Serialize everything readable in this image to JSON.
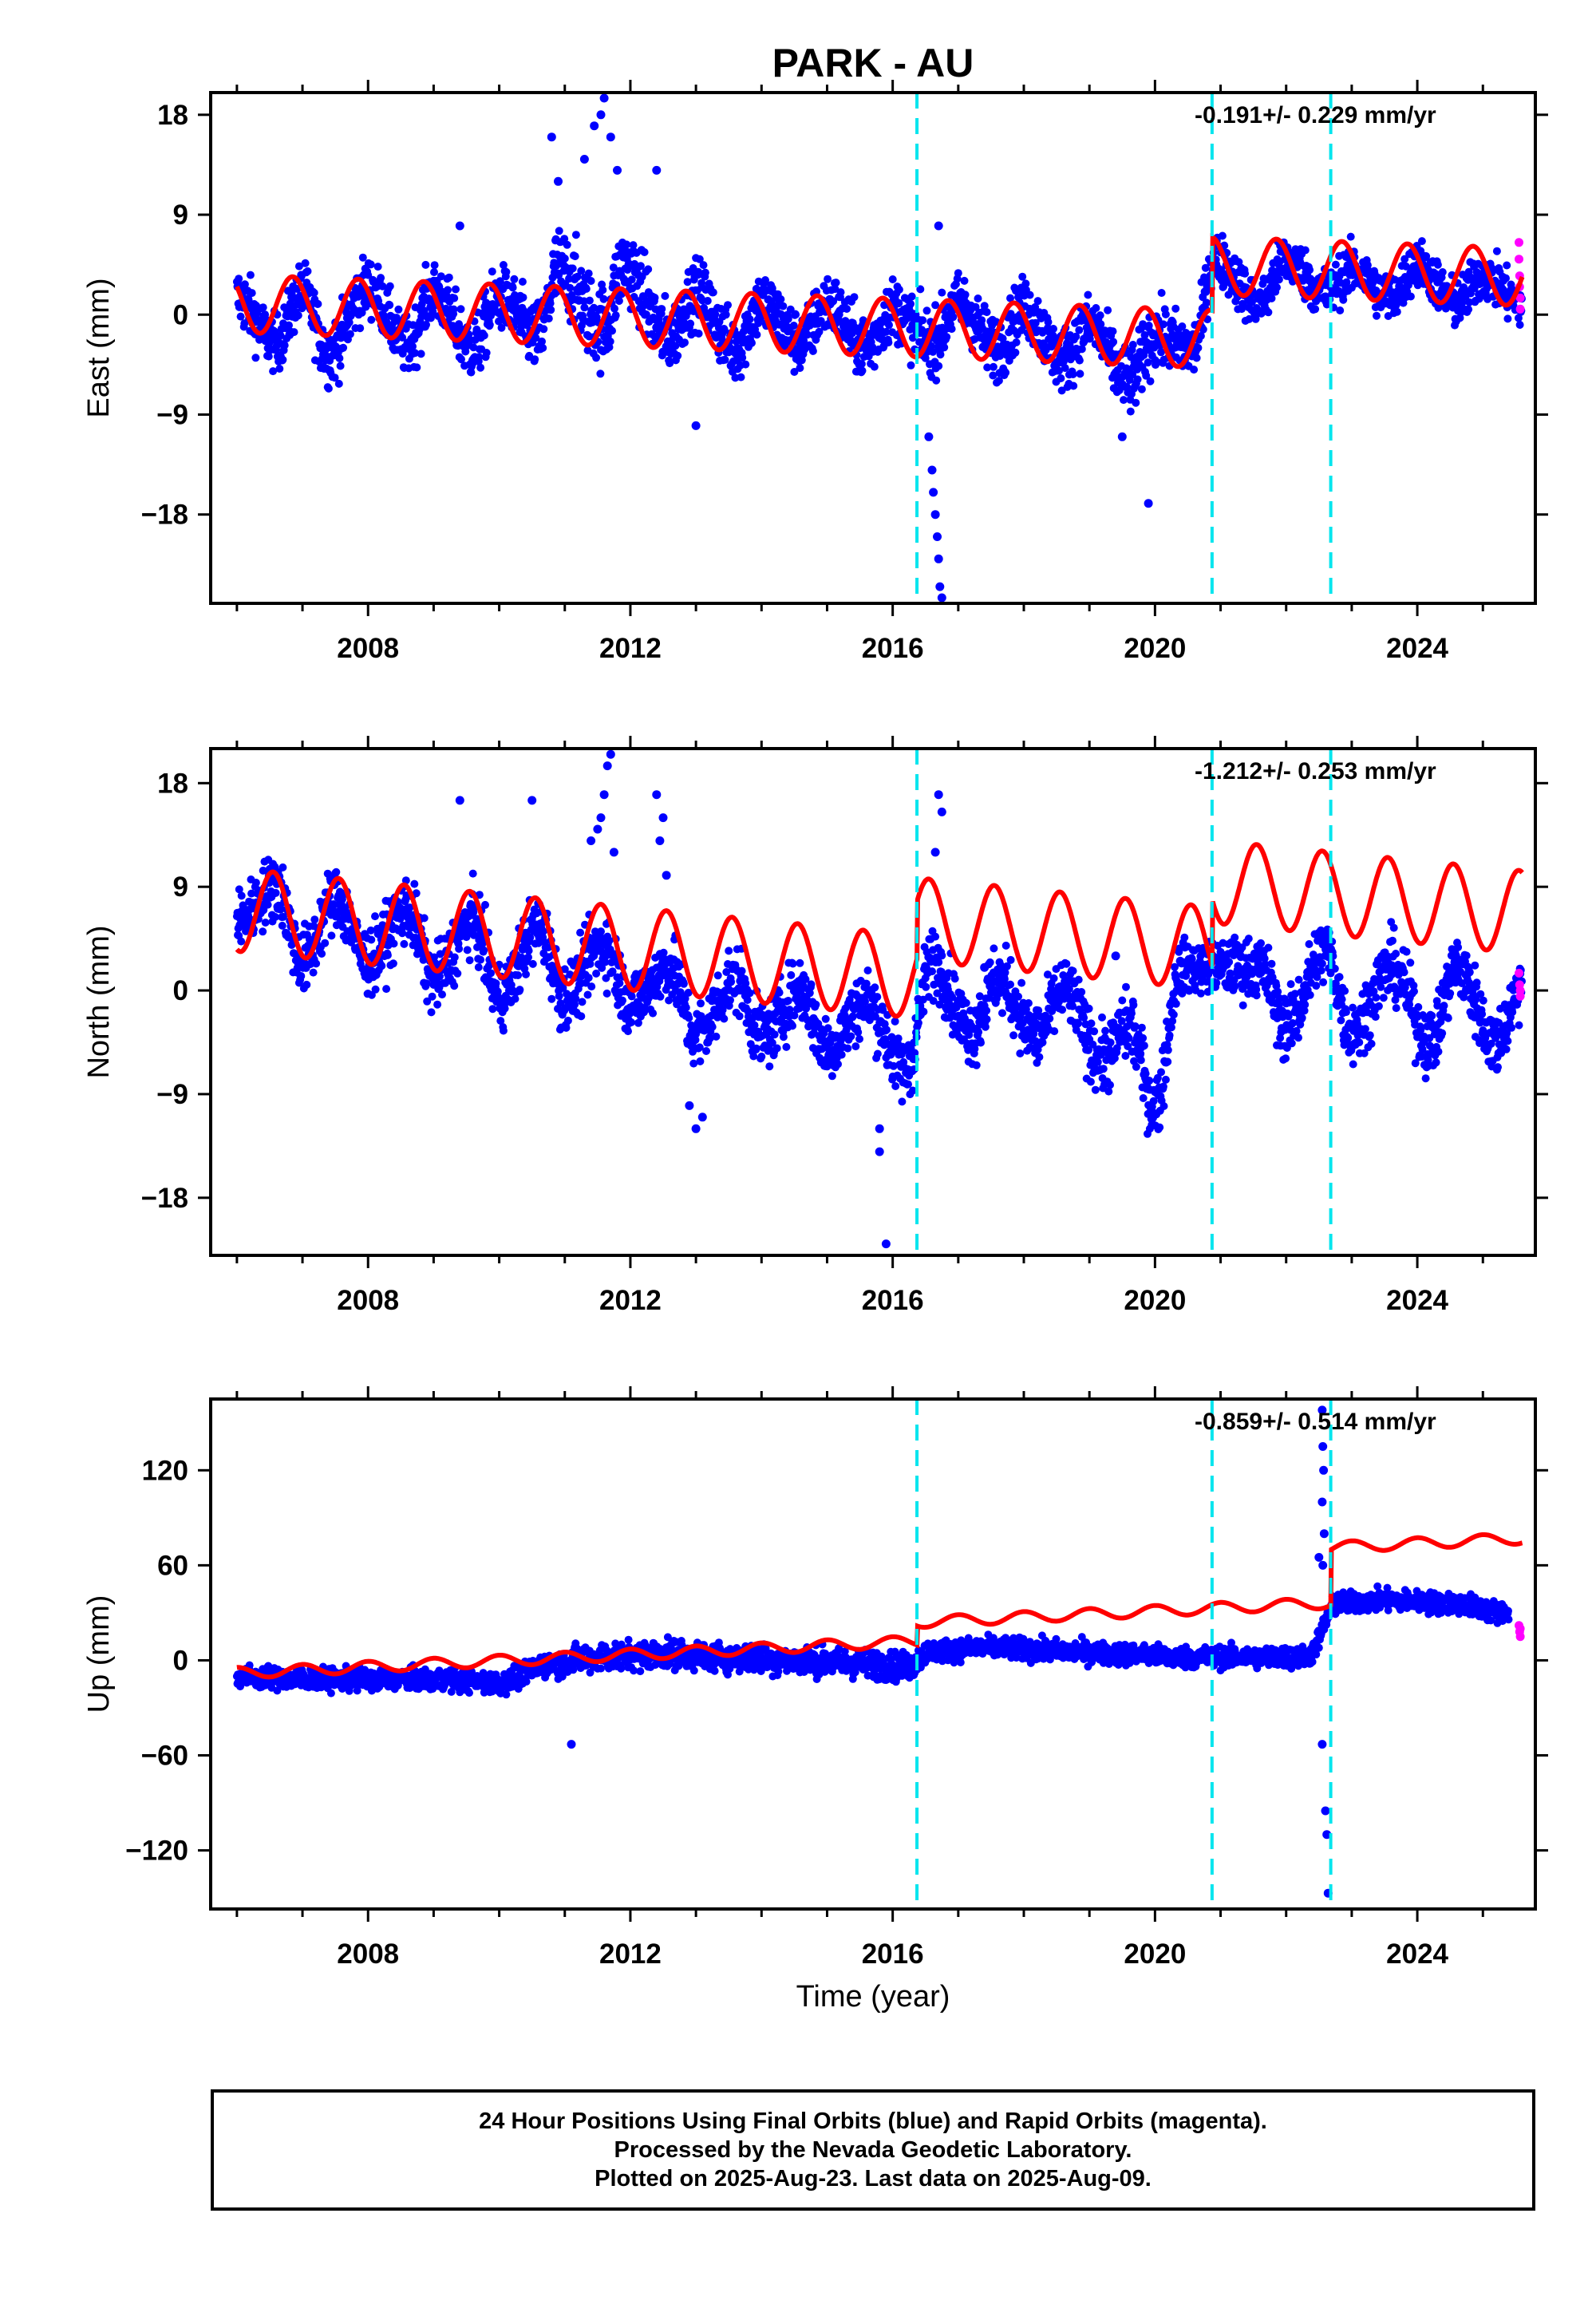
{
  "title": "PARK - AU",
  "xlabel": "Time (year)",
  "footer": {
    "line1": "24 Hour Positions Using Final Orbits (blue) and Rapid Orbits (magenta).",
    "line2": "Processed by the Nevada Geodetic Laboratory.",
    "line3": "Plotted on 2025-Aug-23. Last data on 2025-Aug-09."
  },
  "colors": {
    "final": "#0000ff",
    "rapid": "#ff00ff",
    "model": "#ff0000",
    "offset": "#00e5ee"
  },
  "chart_data": [
    {
      "type": "scatter",
      "component": "East",
      "ylabel": "East (mm)",
      "rate_label": "-0.191+/- 0.229 mm/yr",
      "xlim": [
        2005.6,
        2025.8
      ],
      "ylim": [
        -26,
        20
      ],
      "yticks": [
        18,
        9,
        0,
        -9,
        -18
      ],
      "ytick_labels": [
        "18",
        "9",
        "0",
        "−9",
        "−18"
      ],
      "xticks": [
        2008,
        2012,
        2016,
        2020,
        2024
      ],
      "xtick_labels": [
        "2008",
        "2012",
        "2016",
        "2020",
        "2024"
      ],
      "offset_lines": [
        2016.37,
        2020.87,
        2022.68
      ],
      "rapid_points": [
        [
          2025.55,
          6.5
        ],
        [
          2025.55,
          5.0
        ],
        [
          2025.56,
          3.5
        ],
        [
          2025.56,
          2.5
        ],
        [
          2025.57,
          1.5
        ],
        [
          2025.57,
          0.5
        ]
      ],
      "final_series": [
        [
          2006.0,
          1.5,
          2.6,
          1.0
        ],
        [
          2006.6,
          -2.5,
          2.2,
          0.0
        ],
        [
          2007.0,
          2.0,
          2.4,
          1.0
        ],
        [
          2007.4,
          -3.5,
          2.6,
          0.0
        ],
        [
          2008.0,
          2.5,
          2.4,
          1.0
        ],
        [
          2008.6,
          -2.8,
          2.3,
          0.0
        ],
        [
          2009.0,
          2.0,
          2.5,
          1.0
        ],
        [
          2009.6,
          -3.0,
          2.6,
          0.0
        ],
        [
          2010.0,
          1.5,
          2.6,
          1.0
        ],
        [
          2010.6,
          -2.0,
          2.8,
          0.0
        ],
        [
          2010.9,
          4.0,
          3.5,
          1.0
        ],
        [
          2011.6,
          -1.0,
          3.4,
          0.0
        ],
        [
          2011.9,
          4.5,
          3.2,
          1.0
        ],
        [
          2012.6,
          -2.0,
          2.8,
          0.0
        ],
        [
          2013.0,
          2.0,
          2.6,
          1.0
        ],
        [
          2013.6,
          -3.0,
          2.8,
          0.0
        ],
        [
          2014.0,
          1.0,
          2.6,
          1.0
        ],
        [
          2014.6,
          -2.5,
          2.6,
          0.0
        ],
        [
          2015.0,
          1.0,
          2.5,
          1.0
        ],
        [
          2015.6,
          -3.0,
          2.6,
          0.0
        ],
        [
          2016.0,
          0.5,
          2.5,
          1.0
        ],
        [
          2016.6,
          -2.5,
          2.6,
          0.0
        ],
        [
          2017.0,
          1.0,
          2.4,
          1.0
        ],
        [
          2017.6,
          -3.0,
          2.6,
          0.0
        ],
        [
          2018.0,
          0.5,
          2.5,
          1.0
        ],
        [
          2018.6,
          -4.0,
          2.6,
          0.0
        ],
        [
          2019.0,
          -1.0,
          2.5,
          1.0
        ],
        [
          2019.6,
          -6.0,
          2.8,
          0.0
        ],
        [
          2020.0,
          -2.0,
          2.6,
          1.0
        ],
        [
          2020.6,
          -3.0,
          2.4,
          0.0
        ],
        [
          2020.9,
          5.0,
          2.2,
          1.0
        ],
        [
          2021.6,
          1.0,
          2.0,
          0.0
        ],
        [
          2022.0,
          5.0,
          2.1,
          1.0
        ],
        [
          2022.6,
          2.0,
          2.0,
          0.0
        ],
        [
          2023.0,
          4.0,
          2.0,
          1.0
        ],
        [
          2023.6,
          1.5,
          2.0,
          0.0
        ],
        [
          2024.0,
          4.5,
          2.0,
          1.0
        ],
        [
          2024.6,
          1.0,
          2.0,
          0.0
        ],
        [
          2025.0,
          3.5,
          2.0,
          1.0
        ],
        [
          2025.6,
          1.0,
          2.0,
          0.0
        ]
      ],
      "outliers": [
        [
          2011.3,
          14
        ],
        [
          2011.45,
          17
        ],
        [
          2011.6,
          19.5
        ],
        [
          2011.7,
          16
        ],
        [
          2011.8,
          13
        ],
        [
          2011.55,
          18
        ],
        [
          2010.8,
          16
        ],
        [
          2010.9,
          12
        ],
        [
          2012.4,
          13
        ],
        [
          2009.4,
          8
        ],
        [
          2013.0,
          -10
        ],
        [
          2016.55,
          -11
        ],
        [
          2016.6,
          -14
        ],
        [
          2016.62,
          -16
        ],
        [
          2016.65,
          -18
        ],
        [
          2016.68,
          -20
        ],
        [
          2016.7,
          -22
        ],
        [
          2016.72,
          -24.5
        ],
        [
          2016.75,
          -25.5
        ],
        [
          2016.7,
          8
        ],
        [
          2019.5,
          -11
        ],
        [
          2019.9,
          -17
        ]
      ],
      "model_segments": [
        {
          "x": [
            2006.0,
            2025.6
          ],
          "mean_start": 1.0,
          "mean_end": -3.2,
          "amplitude": 2.6,
          "phase_peak": 0.85,
          "steps": [
            [
              2020.87,
              6.6
            ]
          ]
        }
      ]
    },
    {
      "type": "scatter",
      "component": "North",
      "ylabel": "North (mm)",
      "rate_label": "-1.212+/- 0.253 mm/yr",
      "xlim": [
        2005.6,
        2025.8
      ],
      "ylim": [
        -23,
        21
      ],
      "yticks": [
        18,
        9,
        0,
        -9,
        -18
      ],
      "ytick_labels": [
        "18",
        "9",
        "0",
        "−9",
        "−18"
      ],
      "xticks": [
        2008,
        2012,
        2016,
        2020,
        2024
      ],
      "xtick_labels": [
        "2008",
        "2012",
        "2016",
        "2020",
        "2024"
      ],
      "offset_lines": [
        2016.37,
        2020.87,
        2022.68
      ],
      "rapid_points": [
        [
          2025.55,
          1.5
        ],
        [
          2025.56,
          0.5
        ],
        [
          2025.57,
          -0.5
        ],
        [
          2025.57,
          0.0
        ]
      ],
      "final_series": [
        [
          2006.0,
          6.0,
          2.4,
          1.0
        ],
        [
          2006.6,
          9.0,
          2.6,
          0.0
        ],
        [
          2007.0,
          2.5,
          2.6,
          1.0
        ],
        [
          2007.5,
          8.0,
          2.6,
          0.0
        ],
        [
          2008.0,
          2.5,
          2.6,
          1.0
        ],
        [
          2008.6,
          7.0,
          2.6,
          0.0
        ],
        [
          2009.0,
          1.0,
          2.6,
          1.0
        ],
        [
          2009.6,
          6.0,
          2.6,
          0.0
        ],
        [
          2010.0,
          -0.5,
          2.6,
          1.0
        ],
        [
          2010.6,
          5.5,
          2.6,
          0.0
        ],
        [
          2011.0,
          -0.5,
          2.6,
          1.0
        ],
        [
          2011.6,
          4.0,
          2.8,
          0.0
        ],
        [
          2012.0,
          -1.0,
          2.6,
          1.0
        ],
        [
          2012.6,
          2.0,
          2.6,
          0.0
        ],
        [
          2013.0,
          -4.0,
          2.8,
          1.0
        ],
        [
          2013.6,
          1.0,
          2.6,
          0.0
        ],
        [
          2014.0,
          -4.0,
          2.6,
          1.0
        ],
        [
          2014.6,
          0.0,
          2.6,
          0.0
        ],
        [
          2015.0,
          -5.0,
          2.6,
          1.0
        ],
        [
          2015.6,
          -1.0,
          2.6,
          0.0
        ],
        [
          2016.2,
          -7.0,
          2.6,
          1.0
        ],
        [
          2016.6,
          2.5,
          2.6,
          0.0
        ],
        [
          2017.2,
          -3.5,
          2.6,
          1.0
        ],
        [
          2017.6,
          1.0,
          2.6,
          0.0
        ],
        [
          2018.2,
          -4.0,
          2.6,
          1.0
        ],
        [
          2018.6,
          0.0,
          2.6,
          0.0
        ],
        [
          2019.2,
          -6.0,
          2.6,
          1.0
        ],
        [
          2019.6,
          -3.0,
          2.6,
          0.0
        ],
        [
          2020.0,
          -10.0,
          2.8,
          1.0
        ],
        [
          2020.4,
          2.0,
          2.0,
          0.0
        ],
        [
          2020.9,
          2.0,
          2.0,
          1.0
        ],
        [
          2021.6,
          2.0,
          2.4,
          0.0
        ],
        [
          2022.0,
          -3.0,
          2.6,
          1.0
        ],
        [
          2022.6,
          3.5,
          2.6,
          0.0
        ],
        [
          2023.0,
          -3.5,
          2.6,
          1.0
        ],
        [
          2023.6,
          2.0,
          2.6,
          0.0
        ],
        [
          2024.2,
          -4.5,
          2.6,
          1.0
        ],
        [
          2024.6,
          2.0,
          2.6,
          0.0
        ],
        [
          2025.2,
          -4.5,
          2.6,
          1.0
        ],
        [
          2025.6,
          0.5,
          2.4,
          0.0
        ]
      ],
      "outliers": [
        [
          2009.4,
          16.5
        ],
        [
          2010.5,
          16.5
        ],
        [
          2011.4,
          13
        ],
        [
          2011.5,
          14
        ],
        [
          2011.55,
          15
        ],
        [
          2011.6,
          17
        ],
        [
          2011.65,
          19.5
        ],
        [
          2011.7,
          20.5
        ],
        [
          2011.75,
          12
        ],
        [
          2012.4,
          17
        ],
        [
          2012.5,
          15
        ],
        [
          2012.45,
          13
        ],
        [
          2012.55,
          10
        ],
        [
          2013.0,
          -12
        ],
        [
          2012.9,
          -10
        ],
        [
          2013.1,
          -11
        ],
        [
          2015.8,
          -14
        ],
        [
          2015.9,
          -22
        ],
        [
          2015.8,
          -12
        ],
        [
          2016.7,
          17
        ],
        [
          2016.75,
          15.5
        ],
        [
          2016.65,
          12
        ],
        [
          2017.4,
          2
        ],
        [
          2019.4,
          3
        ]
      ],
      "model_segments": [
        {
          "x": [
            2006.0,
            2025.6
          ],
          "mean_start": 7.0,
          "mean_end": -4.0,
          "amplitude": 3.6,
          "phase_peak": 0.55,
          "steps": [
            [
              2016.37,
              5.0
            ],
            [
              2020.87,
              5.8
            ]
          ]
        }
      ]
    },
    {
      "type": "scatter",
      "component": "Up",
      "ylabel": "Up (mm)",
      "rate_label": "-0.859+/- 0.514 mm/yr",
      "xlim": [
        2005.6,
        2025.8
      ],
      "ylim": [
        -157,
        165
      ],
      "yticks": [
        120,
        60,
        0,
        -60,
        -120
      ],
      "ytick_labels": [
        "120",
        "60",
        "0",
        "−60",
        "−120"
      ],
      "xticks": [
        2008,
        2012,
        2016,
        2020,
        2024
      ],
      "xtick_labels": [
        "2008",
        "2012",
        "2016",
        "2020",
        "2024"
      ],
      "offset_lines": [
        2016.37,
        2020.87,
        2022.68
      ],
      "rapid_points": [
        [
          2025.55,
          22
        ],
        [
          2025.56,
          18
        ],
        [
          2025.57,
          15
        ],
        [
          2025.57,
          20
        ]
      ],
      "final_series": [
        [
          2006.0,
          -10,
          6,
          0.5
        ],
        [
          2007.0,
          -12,
          6,
          0.5
        ],
        [
          2008.0,
          -12,
          6,
          0.5
        ],
        [
          2009.0,
          -12,
          6,
          0.5
        ],
        [
          2010.0,
          -14,
          6,
          0.5
        ],
        [
          2010.8,
          -2,
          7,
          0.5
        ],
        [
          2011.5,
          2,
          8,
          0.5
        ],
        [
          2012.5,
          4,
          8,
          0.5
        ],
        [
          2013.5,
          2,
          8,
          0.5
        ],
        [
          2014.5,
          0,
          8,
          0.5
        ],
        [
          2015.5,
          -2,
          8,
          0.5
        ],
        [
          2016.2,
          -4,
          8,
          0.5
        ],
        [
          2016.6,
          6,
          6,
          0.5
        ],
        [
          2017.5,
          8,
          6,
          0.5
        ],
        [
          2018.5,
          6,
          6,
          0.5
        ],
        [
          2019.5,
          4,
          6,
          0.5
        ],
        [
          2020.5,
          2,
          6,
          0.5
        ],
        [
          2021.5,
          2,
          6,
          0.5
        ],
        [
          2022.3,
          2,
          6,
          0.5
        ],
        [
          2022.8,
          36,
          6,
          0.5
        ],
        [
          2023.5,
          38,
          6,
          0.5
        ],
        [
          2024.5,
          36,
          6,
          0.5
        ],
        [
          2025.4,
          30,
          6,
          0.5
        ]
      ],
      "outliers": [
        [
          2011.1,
          -53
        ],
        [
          2022.55,
          158
        ],
        [
          2022.56,
          135
        ],
        [
          2022.57,
          120
        ],
        [
          2022.55,
          100
        ],
        [
          2022.58,
          80
        ],
        [
          2022.56,
          60
        ],
        [
          2022.55,
          -53
        ],
        [
          2022.6,
          -95
        ],
        [
          2022.62,
          -110
        ],
        [
          2022.64,
          -147
        ],
        [
          2022.5,
          65
        ]
      ],
      "model_segments": [
        {
          "x": [
            2006.0,
            2025.6
          ],
          "mean_start": -8.0,
          "mean_end": 30.0,
          "amplitude": 3.5,
          "phase_peak": 0.0,
          "steps": [
            [
              2016.37,
              12.0
            ],
            [
              2022.68,
              35.0
            ]
          ]
        }
      ]
    }
  ]
}
